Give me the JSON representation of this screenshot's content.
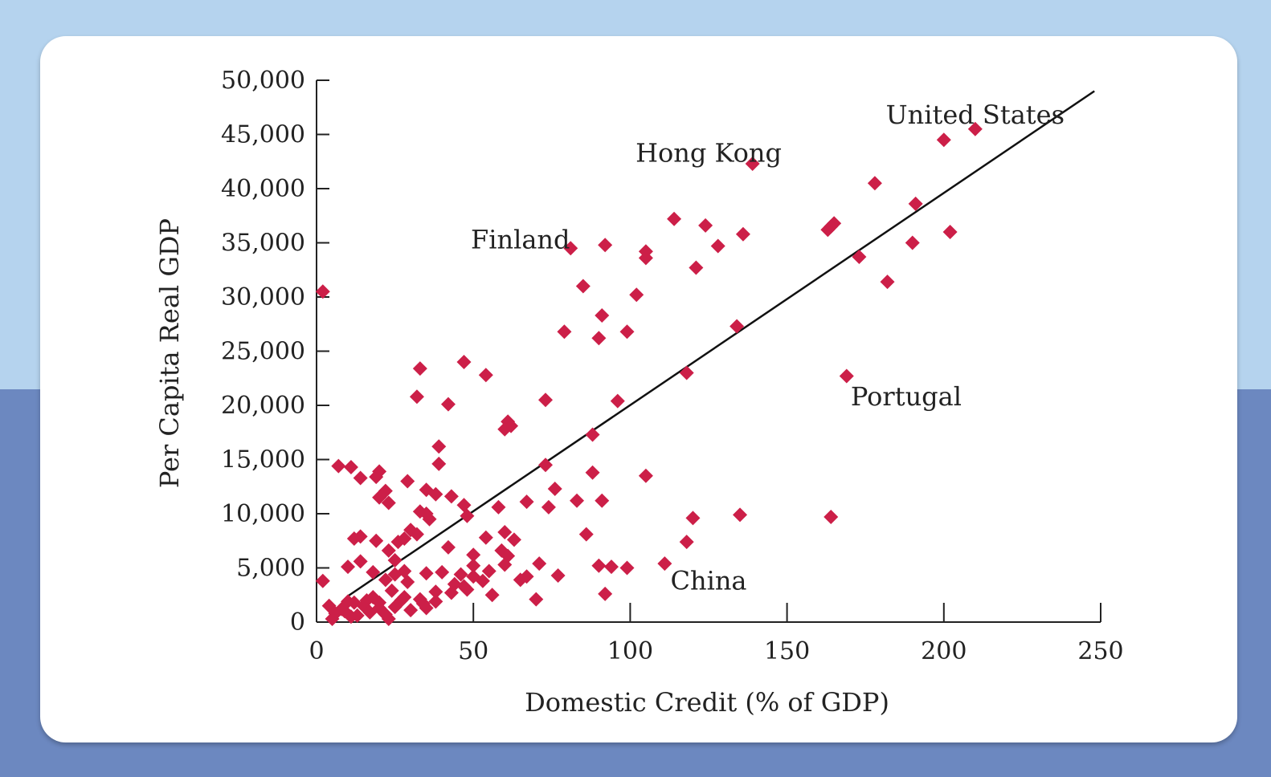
{
  "chart_data": {
    "type": "scatter",
    "xlabel": "Domestic Credit (% of GDP)",
    "ylabel": "Per Capita Real GDP",
    "xlim": [
      0,
      250
    ],
    "ylim": [
      0,
      50000
    ],
    "xticks": [
      "0",
      "50",
      "100",
      "150",
      "200",
      "250"
    ],
    "yticks": [
      "0",
      "5,000",
      "10,000",
      "15,000",
      "20,000",
      "25,000",
      "30,000",
      "35,000",
      "40,000",
      "45,000",
      "50,000"
    ],
    "marker_color": "#cc1f48",
    "trend_line": {
      "x": [
        10,
        248
      ],
      "y": [
        2400,
        49000
      ]
    },
    "annotations": [
      {
        "text": "United States",
        "x": 210,
        "y": 46000
      },
      {
        "text": "Hong Kong",
        "x": 125,
        "y": 42500
      },
      {
        "text": "Finland",
        "x": 65,
        "y": 34500
      },
      {
        "text": "Portugal",
        "x": 188,
        "y": 20000
      },
      {
        "text": "China",
        "x": 125,
        "y": 3000
      }
    ],
    "points": [
      [
        2,
        30500
      ],
      [
        210,
        45500
      ],
      [
        200,
        44500
      ],
      [
        139,
        42300
      ],
      [
        178,
        40500
      ],
      [
        191,
        38600
      ],
      [
        114,
        37200
      ],
      [
        124,
        36600
      ],
      [
        136,
        35800
      ],
      [
        165,
        36800
      ],
      [
        164,
        36500
      ],
      [
        163,
        36200
      ],
      [
        190,
        35000
      ],
      [
        202,
        36000
      ],
      [
        81,
        34500
      ],
      [
        92,
        34800
      ],
      [
        105,
        34200
      ],
      [
        105,
        33600
      ],
      [
        128,
        34700
      ],
      [
        121,
        32700
      ],
      [
        173,
        33700
      ],
      [
        182,
        31400
      ],
      [
        85,
        31000
      ],
      [
        102,
        30200
      ],
      [
        91,
        28300
      ],
      [
        134,
        27300
      ],
      [
        79,
        26800
      ],
      [
        99,
        26800
      ],
      [
        90,
        26200
      ],
      [
        47,
        24000
      ],
      [
        33,
        23400
      ],
      [
        54,
        22800
      ],
      [
        118,
        23000
      ],
      [
        169,
        22700
      ],
      [
        32,
        20800
      ],
      [
        73,
        20500
      ],
      [
        96,
        20400
      ],
      [
        42,
        20100
      ],
      [
        61,
        18500
      ],
      [
        62,
        18100
      ],
      [
        60,
        17800
      ],
      [
        88,
        17300
      ],
      [
        39,
        16200
      ],
      [
        7,
        14400
      ],
      [
        11,
        14300
      ],
      [
        39,
        14600
      ],
      [
        73,
        14500
      ],
      [
        20,
        13900
      ],
      [
        14,
        13300
      ],
      [
        19,
        13400
      ],
      [
        29,
        13000
      ],
      [
        88,
        13800
      ],
      [
        105,
        13500
      ],
      [
        76,
        12300
      ],
      [
        22,
        12100
      ],
      [
        35,
        12200
      ],
      [
        43,
        11600
      ],
      [
        23,
        11000
      ],
      [
        20,
        11500
      ],
      [
        38,
        11800
      ],
      [
        67,
        11100
      ],
      [
        83,
        11200
      ],
      [
        91,
        11200
      ],
      [
        47,
        10800
      ],
      [
        58,
        10600
      ],
      [
        33,
        10200
      ],
      [
        74,
        10600
      ],
      [
        35,
        10000
      ],
      [
        36,
        9500
      ],
      [
        48,
        9800
      ],
      [
        120,
        9600
      ],
      [
        135,
        9900
      ],
      [
        164,
        9700
      ],
      [
        30,
        8500
      ],
      [
        60,
        8300
      ],
      [
        12,
        7700
      ],
      [
        14,
        7900
      ],
      [
        19,
        7500
      ],
      [
        26,
        7400
      ],
      [
        28,
        7700
      ],
      [
        32,
        8100
      ],
      [
        54,
        7800
      ],
      [
        63,
        7600
      ],
      [
        86,
        8100
      ],
      [
        118,
        7400
      ],
      [
        23,
        6600
      ],
      [
        42,
        6900
      ],
      [
        50,
        6200
      ],
      [
        59,
        6600
      ],
      [
        61,
        6100
      ],
      [
        14,
        5600
      ],
      [
        10,
        5100
      ],
      [
        25,
        5700
      ],
      [
        50,
        5200
      ],
      [
        60,
        5300
      ],
      [
        71,
        5400
      ],
      [
        111,
        5400
      ],
      [
        18,
        4600
      ],
      [
        25,
        4400
      ],
      [
        28,
        4700
      ],
      [
        35,
        4500
      ],
      [
        40,
        4600
      ],
      [
        46,
        4400
      ],
      [
        50,
        4200
      ],
      [
        55,
        4700
      ],
      [
        67,
        4200
      ],
      [
        77,
        4300
      ],
      [
        90,
        5200
      ],
      [
        94,
        5100
      ],
      [
        99,
        5000
      ],
      [
        2,
        3800
      ],
      [
        22,
        3900
      ],
      [
        29,
        3700
      ],
      [
        44,
        3500
      ],
      [
        47,
        3300
      ],
      [
        53,
        3800
      ],
      [
        65,
        3900
      ],
      [
        24,
        2900
      ],
      [
        38,
        2800
      ],
      [
        43,
        2700
      ],
      [
        56,
        2500
      ],
      [
        48,
        3000
      ],
      [
        92,
        2600
      ],
      [
        70,
        2100
      ],
      [
        18,
        2300
      ],
      [
        10,
        1900
      ],
      [
        4,
        1500
      ],
      [
        8,
        1200
      ],
      [
        12,
        1800
      ],
      [
        15,
        1500
      ],
      [
        20,
        1300
      ],
      [
        27,
        2000
      ],
      [
        34,
        1700
      ],
      [
        6,
        800
      ],
      [
        9,
        1000
      ],
      [
        13,
        600
      ],
      [
        17,
        900
      ],
      [
        22,
        700
      ],
      [
        25,
        1400
      ],
      [
        30,
        1100
      ],
      [
        35,
        1300
      ],
      [
        16,
        2000
      ],
      [
        20,
        1800
      ],
      [
        28,
        2300
      ],
      [
        33,
        2100
      ],
      [
        38,
        1900
      ],
      [
        5,
        300
      ],
      [
        11,
        500
      ],
      [
        23,
        300
      ]
    ]
  }
}
